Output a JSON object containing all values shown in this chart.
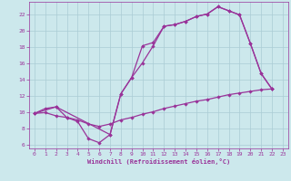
{
  "xlabel": "Windchill (Refroidissement éolien,°C)",
  "bg_color": "#cce8ec",
  "grid_color": "#aaccd4",
  "line_color": "#993399",
  "xlim": [
    -0.5,
    23.5
  ],
  "ylim": [
    5.5,
    23.5
  ],
  "xticks": [
    0,
    1,
    2,
    3,
    4,
    5,
    6,
    7,
    8,
    9,
    10,
    11,
    12,
    13,
    14,
    15,
    16,
    17,
    18,
    19,
    20,
    21,
    22,
    23
  ],
  "yticks": [
    6,
    8,
    10,
    12,
    14,
    16,
    18,
    20,
    22
  ],
  "series1_x": [
    0,
    1,
    2,
    3,
    4,
    5,
    6,
    7,
    8,
    9,
    10,
    11,
    12,
    13,
    14,
    15,
    16,
    17,
    18,
    19,
    20,
    21,
    22
  ],
  "series1_y": [
    9.8,
    10.4,
    10.6,
    9.3,
    8.8,
    6.7,
    6.2,
    7.2,
    12.2,
    14.2,
    18.1,
    18.5,
    20.5,
    20.7,
    21.1,
    21.7,
    22.0,
    22.9,
    22.4,
    21.9,
    18.4,
    14.7,
    12.8
  ],
  "series2_x": [
    0,
    2,
    7,
    8,
    9,
    10,
    11,
    12,
    13,
    14,
    15,
    16,
    17,
    18,
    19,
    20,
    21,
    22
  ],
  "series2_y": [
    9.8,
    10.6,
    7.2,
    12.2,
    14.2,
    16.0,
    18.1,
    20.5,
    20.7,
    21.1,
    21.7,
    22.0,
    22.9,
    22.4,
    21.9,
    18.4,
    14.7,
    12.8
  ],
  "series3_x": [
    0,
    1,
    2,
    3,
    4,
    5,
    6,
    7,
    8,
    9,
    10,
    11,
    12,
    13,
    14,
    15,
    16,
    17,
    18,
    19,
    20,
    21,
    22
  ],
  "series3_y": [
    9.8,
    9.9,
    9.5,
    9.3,
    9.0,
    8.5,
    8.2,
    8.5,
    9.0,
    9.3,
    9.7,
    10.0,
    10.4,
    10.7,
    11.0,
    11.3,
    11.5,
    11.8,
    12.1,
    12.3,
    12.5,
    12.7,
    12.8
  ]
}
